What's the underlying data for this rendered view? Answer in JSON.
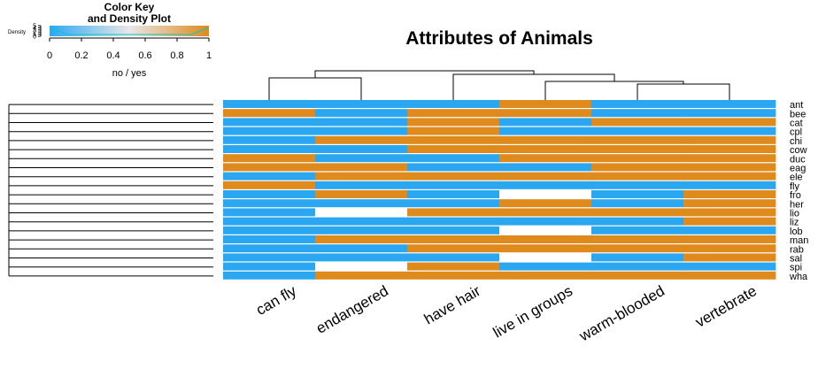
{
  "chart_data": {
    "type": "heatmap",
    "title": "Attributes of Animals",
    "columns": [
      "can fly",
      "endangered",
      "have hair",
      "live in groups",
      "warm-blooded",
      "vertebrate"
    ],
    "rows": [
      "ant",
      "bee",
      "cat",
      "cpl",
      "chi",
      "cow",
      "duc",
      "eag",
      "ele",
      "fly",
      "fro",
      "her",
      "lio",
      "liz",
      "lob",
      "man",
      "rab",
      "sal",
      "spi",
      "wha"
    ],
    "values": [
      [
        0,
        0,
        0,
        1,
        0,
        0
      ],
      [
        1,
        0,
        1,
        1,
        0,
        0
      ],
      [
        0,
        0,
        1,
        0,
        1,
        1
      ],
      [
        0,
        0,
        1,
        0,
        0,
        0
      ],
      [
        0,
        1,
        1,
        1,
        1,
        1
      ],
      [
        0,
        0,
        1,
        1,
        1,
        1
      ],
      [
        1,
        0,
        0,
        1,
        1,
        1
      ],
      [
        1,
        1,
        0,
        0,
        1,
        1
      ],
      [
        0,
        1,
        1,
        1,
        1,
        1
      ],
      [
        1,
        0,
        0,
        0,
        0,
        0
      ],
      [
        0,
        1,
        0,
        null,
        0,
        1
      ],
      [
        0,
        0,
        0,
        1,
        0,
        1
      ],
      [
        0,
        null,
        1,
        1,
        1,
        1
      ],
      [
        0,
        0,
        0,
        0,
        0,
        1
      ],
      [
        0,
        0,
        0,
        null,
        0,
        0
      ],
      [
        0,
        1,
        1,
        1,
        1,
        1
      ],
      [
        0,
        0,
        1,
        1,
        1,
        1
      ],
      [
        0,
        0,
        0,
        null,
        0,
        1
      ],
      [
        0,
        null,
        1,
        0,
        0,
        0
      ],
      [
        0,
        1,
        1,
        1,
        1,
        1
      ]
    ],
    "value_range": [
      0,
      1
    ],
    "colors": {
      "low": "#2ba7f2",
      "high": "#df8a1c",
      "mid": "#e8e8e8",
      "missing": "#ffffff"
    },
    "color_key": {
      "title_line1": "Color Key",
      "title_line2": "and Density Plot",
      "xlabel": "no / yes",
      "ylabel": "Density",
      "ticks": [
        "0",
        "0.2",
        "0.4",
        "0.6",
        "0.8",
        "1"
      ],
      "density_ticks": [
        "5",
        "4",
        "3",
        "2",
        "1",
        "0"
      ]
    },
    "column_dendrogram": true,
    "row_dendrogram": true
  }
}
